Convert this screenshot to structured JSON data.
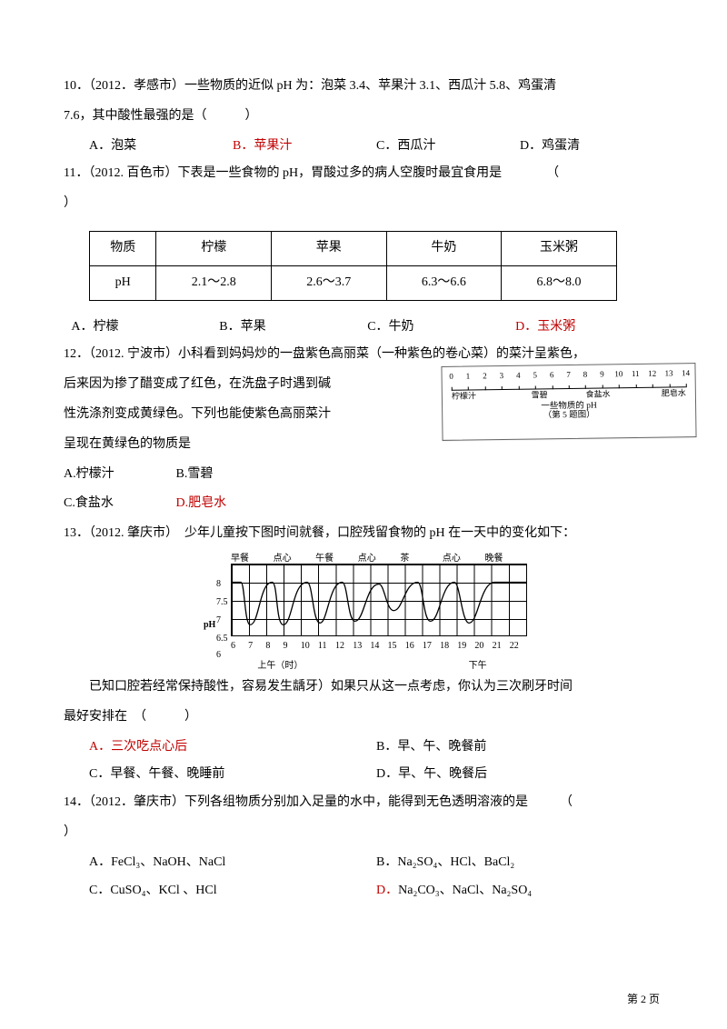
{
  "q10": {
    "stem1": "10．（2012．孝感市）一些物质的近似 pH 为：泡菜 3.4、苹果汁 3.1、西瓜汁 5.8、鸡蛋清",
    "stem2": "7.6，其中酸性最强的是（　　　）",
    "opts": {
      "A": "A．泡菜",
      "B": "B．苹果汁",
      "C": "C．西瓜汁",
      "D": "D．鸡蛋清"
    },
    "answer": "B"
  },
  "q11": {
    "stem1": "11．（2012. 百色市）下表是一些食物的 pH，胃酸过多的病人空腹时最宜食用是　　　　（",
    "stem2": "）",
    "table": {
      "headers": [
        "物质",
        "柠檬",
        "苹果",
        "牛奶",
        "玉米粥"
      ],
      "rows": [
        [
          "pH",
          "2.1～2.8",
          "2.6～3.7",
          "6.3～6.6",
          "6.8～8.0"
        ]
      ]
    },
    "opts": {
      "A": "A．柠檬",
      "B": "B．苹果",
      "C": "C．牛奶",
      "D": "D．玉米粥"
    },
    "answer": "D"
  },
  "q12": {
    "line1": "12．（2012. 宁波市）小科看到妈妈炒的一盘紫色高丽菜（一种紫色的卷心菜）的菜汁呈紫色，",
    "line2": "后来因为掺了醋变成了红色，在洗盘子时遇到碱",
    "line3": "性洗涤剂变成黄绿色。下列也能使紫色高丽菜汁",
    "line4": "呈现在黄绿色的物质是",
    "optAB": {
      "A": "A.柠檬汁",
      "B": "B.雪碧"
    },
    "optCD": {
      "C": "C.食盐水",
      "D": "D.肥皂水"
    },
    "answer": "D",
    "scale": {
      "ticks": [
        0,
        1,
        2,
        3,
        4,
        5,
        6,
        7,
        8,
        9,
        10,
        11,
        12,
        13,
        14
      ],
      "labels": [
        "柠檬汁",
        "雪碧",
        "食盐水",
        "肥皂水"
      ],
      "caption": "一些物质的 pH",
      "sub": "（第 5 题图）"
    }
  },
  "q13": {
    "stem": "13．（2012. 肇庆市）　少年儿童按下图时间就餐，口腔残留食物的 pH 在一天中的变化如下：",
    "chart": {
      "toplabels": [
        "早餐",
        "点心",
        "午餐",
        "点心",
        "茶",
        "点心",
        "晚餐"
      ],
      "ylabel": "pH",
      "yticks": [
        "8",
        "7.5",
        "7",
        "6.5",
        "6"
      ],
      "xticks": [
        "6",
        "7",
        "8",
        "9",
        "10",
        "11",
        "12",
        "13",
        "14",
        "15",
        "16",
        "17",
        "18",
        "19",
        "20",
        "21",
        "22"
      ],
      "xcaps": [
        "上午（时）",
        "",
        "下午"
      ]
    },
    "after1": "　　已知口腔若经常保持酸性，容易发生龋牙）如果只从这一点考虑，你认为三次刷牙时间",
    "after2": "最好安排在　（　　　）",
    "opts": {
      "A": "A．三次吃点心后",
      "B": "B．早、午、晚餐前",
      "C": "C．早餐、午餐、晚睡前",
      "D": "D．早、午、晚餐后"
    },
    "answer": "A"
  },
  "q14": {
    "stem1": "14．（2012．肇庆市）下列各组物质分别加入足量的水中，能得到无色透明溶液的是　　　（",
    "stem2": "）",
    "opts": {
      "A": "A．FeCl₃、NaOH、NaCl",
      "B": "B．Na₂SO₄、HCl、BaCl₂",
      "C": "C．CuSO₄、KCl 、HCl",
      "D": "D．Na₂CO₃、NaCl、Na₂SO₄"
    },
    "answer": "D"
  },
  "pageFooter": "第 2 页"
}
